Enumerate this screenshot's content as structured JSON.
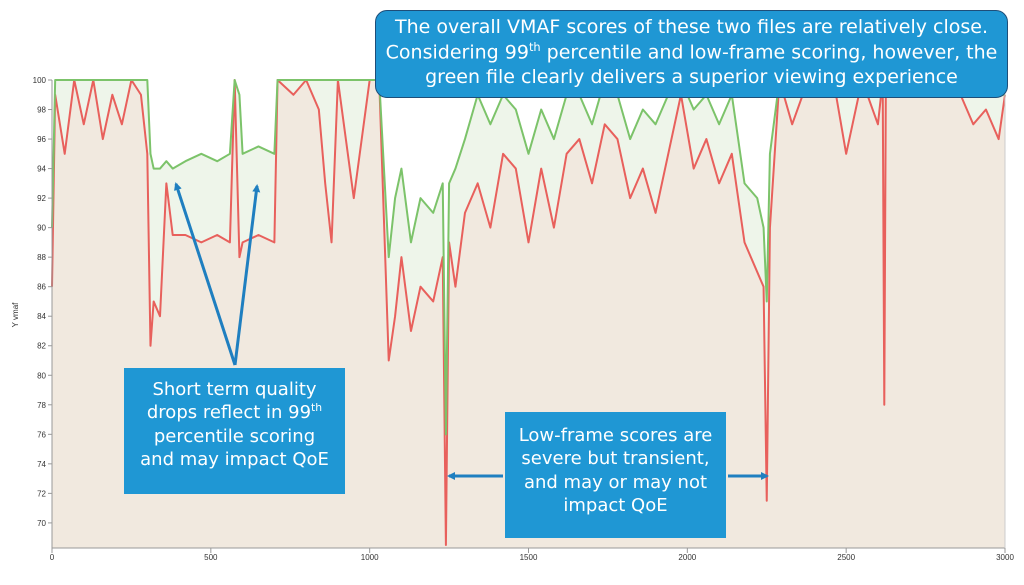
{
  "chart_data": {
    "type": "line",
    "y_label": "Y vmaf",
    "x": [
      0,
      10,
      40,
      70,
      100,
      130,
      160,
      190,
      220,
      250,
      280,
      300,
      310,
      320,
      340,
      360,
      380,
      420,
      470,
      520,
      560,
      575,
      590,
      600,
      650,
      700,
      710,
      760,
      800,
      840,
      860,
      880,
      900,
      950,
      1000,
      1030,
      1060,
      1080,
      1100,
      1130,
      1160,
      1200,
      1230,
      1240,
      1250,
      1270,
      1300,
      1340,
      1380,
      1420,
      1460,
      1500,
      1540,
      1580,
      1620,
      1660,
      1700,
      1740,
      1780,
      1820,
      1860,
      1900,
      1940,
      1980,
      2020,
      2060,
      2100,
      2140,
      2180,
      2220,
      2240,
      2250,
      2260,
      2290,
      2330,
      2380,
      2420,
      2460,
      2500,
      2550,
      2600,
      2615,
      2620,
      2625,
      2660,
      2720,
      2800,
      2860,
      2900,
      2940,
      2980,
      3000
    ],
    "series": [
      {
        "color": "#e8605c",
        "area_color": "#f1e9df",
        "values": [
          86,
          99,
          95,
          100,
          97,
          100,
          96,
          99,
          97,
          100,
          99,
          95,
          82,
          85,
          84,
          93,
          89.5,
          89.5,
          89,
          89.5,
          89,
          100,
          88,
          89,
          89.5,
          89,
          100,
          99,
          100,
          98,
          93,
          89,
          100,
          92,
          100,
          100,
          81,
          84,
          88,
          83,
          86,
          85,
          88,
          68.5,
          89,
          86,
          91,
          93,
          90,
          95,
          94,
          89,
          94,
          90,
          95,
          96,
          93,
          97,
          96,
          92,
          94,
          91,
          95,
          99,
          94,
          96,
          93,
          95,
          89,
          87,
          86,
          71.5,
          90,
          100,
          97,
          100,
          99,
          100,
          95,
          100,
          97,
          100,
          78,
          100,
          100,
          100,
          100,
          99,
          97,
          98,
          96,
          99
        ]
      },
      {
        "color": "#7cc36a",
        "area_color": "#eef5ea",
        "values": [
          90,
          100,
          100,
          100,
          100,
          100,
          100,
          100,
          100,
          100,
          100,
          100,
          95,
          94,
          94,
          94.5,
          94,
          94.5,
          95,
          94.5,
          95,
          100,
          99,
          95,
          95.5,
          95,
          100,
          100,
          100,
          100,
          100,
          100,
          100,
          100,
          100,
          100,
          88,
          92,
          94,
          89,
          92,
          91,
          93,
          76,
          93,
          94,
          96,
          99,
          97,
          99,
          98,
          95,
          98,
          96,
          99,
          99,
          97,
          100,
          99,
          96,
          98,
          97,
          99,
          100,
          98,
          99,
          97,
          99,
          93,
          92,
          90,
          85,
          95,
          100,
          100,
          100,
          100,
          100,
          100,
          100,
          100,
          100,
          100,
          100,
          100,
          100,
          100,
          100,
          99,
          99,
          99,
          99
        ]
      }
    ],
    "xlim": [
      0,
      3000
    ],
    "xticks": [
      0,
      500,
      1000,
      1500,
      2000,
      2500,
      3000
    ],
    "ylim": [
      68.3,
      100
    ],
    "yticks": [
      70,
      72,
      74,
      76,
      78,
      80,
      82,
      84,
      86,
      88,
      90,
      92,
      94,
      96,
      98,
      100
    ],
    "annotations": [
      {
        "parts": [
          "The overall VMAF scores of these two files are relatively close.",
          "Considering 99",
          "th",
          " percentile and low-frame scoring, however, the",
          "green file clearly delivers a superior viewing experience"
        ]
      },
      {
        "parts": [
          "Short term quality",
          "drops reflect in 99",
          "th",
          "percentile scoring",
          "and may impact QoE"
        ]
      },
      {
        "parts": [
          "Low-frame scores are",
          "severe but transient,",
          "and may or may not",
          "impact QoE"
        ]
      }
    ]
  }
}
